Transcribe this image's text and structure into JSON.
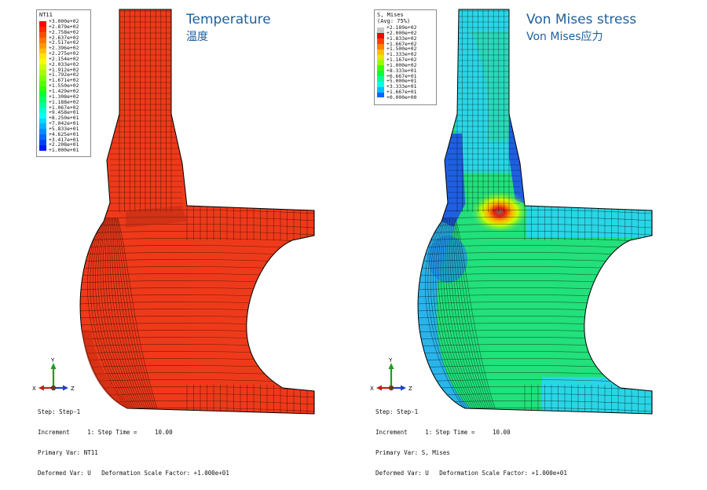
{
  "left": {
    "title_en": "Temperature",
    "title_zh": "温度",
    "legend": {
      "header_lines": [
        "NT11"
      ],
      "entries": [
        {
          "value": "+3.000e+02",
          "color": "#ff0000"
        },
        {
          "value": "+2.879e+02",
          "color": "#ff2600"
        },
        {
          "value": "+2.758e+02",
          "color": "#ff4d00"
        },
        {
          "value": "+2.637e+02",
          "color": "#ff7300"
        },
        {
          "value": "+2.517e+02",
          "color": "#ff9900"
        },
        {
          "value": "+2.396e+02",
          "color": "#ffbf00"
        },
        {
          "value": "+2.275e+02",
          "color": "#ffe600"
        },
        {
          "value": "+2.154e+02",
          "color": "#f2ff00"
        },
        {
          "value": "+2.033e+02",
          "color": "#ccff00"
        },
        {
          "value": "+1.912e+02",
          "color": "#a6ff00"
        },
        {
          "value": "+1.792e+02",
          "color": "#80ff00"
        },
        {
          "value": "+1.671e+02",
          "color": "#59ff00"
        },
        {
          "value": "+1.550e+02",
          "color": "#33ff00"
        },
        {
          "value": "+1.429e+02",
          "color": "#00ff33"
        },
        {
          "value": "+1.308e+02",
          "color": "#00ff66"
        },
        {
          "value": "+1.188e+02",
          "color": "#00ff99"
        },
        {
          "value": "+1.067e+02",
          "color": "#00ffcc"
        },
        {
          "value": "+9.458e+01",
          "color": "#00ffff"
        },
        {
          "value": "+8.250e+01",
          "color": "#00d9ff"
        },
        {
          "value": "+7.042e+01",
          "color": "#00b3ff"
        },
        {
          "value": "+5.833e+01",
          "color": "#008cff"
        },
        {
          "value": "+4.625e+01",
          "color": "#0066ff"
        },
        {
          "value": "+3.417e+01",
          "color": "#0040ff"
        },
        {
          "value": "+2.208e+01",
          "color": "#0019ff"
        },
        {
          "value": "+1.000e+01",
          "color": "#0000ff"
        }
      ]
    },
    "status_lines": [
      "Step: Step-1",
      "Increment     1: Step Time =     10.00",
      "Primary Var: NT11",
      "Deformed Var: U   Deformation Scale Factor: +1.000e+01"
    ],
    "axes": {
      "y": "Y",
      "x": "X",
      "z": "Z"
    }
  },
  "right": {
    "title_en": "Von Mises stress",
    "title_zh": "Von Mises应力",
    "legend": {
      "header_lines": [
        "S, Mises",
        "(Avg: 75%)"
      ],
      "entries": [
        {
          "value": "+2.189e+02",
          "color": "#c8c8c8"
        },
        {
          "value": "+2.000e+02",
          "color": "#ff0000"
        },
        {
          "value": "+1.833e+02",
          "color": "#ff4000"
        },
        {
          "value": "+1.667e+02",
          "color": "#ff8000"
        },
        {
          "value": "+1.500e+02",
          "color": "#ffbf00"
        },
        {
          "value": "+1.333e+02",
          "color": "#e6e600"
        },
        {
          "value": "+1.167e+02",
          "color": "#99ff00"
        },
        {
          "value": "+1.000e+02",
          "color": "#40ff00"
        },
        {
          "value": "+8.333e+01",
          "color": "#00ff40"
        },
        {
          "value": "+6.667e+01",
          "color": "#00ff99"
        },
        {
          "value": "+5.000e+01",
          "color": "#00ffe6"
        },
        {
          "value": "+3.333e+01",
          "color": "#00bfff"
        },
        {
          "value": "+1.667e+01",
          "color": "#0066ff"
        },
        {
          "value": "+0.000e+00",
          "color": "#0000ff"
        }
      ]
    },
    "status_lines": [
      "Step: Step-1",
      "Increment     1: Step Time =     10.00",
      "Primary Var: S, Mises",
      "Deformed Var: U   Deformation Scale Factor: +1.000e+01"
    ],
    "axes": {
      "y": "Y",
      "x": "X",
      "z": "Z"
    }
  },
  "colors": {
    "title": "#1f5f9b",
    "mesh_line": "#000000",
    "temperature_fill": "#ee3a1a",
    "stress_base": "#22e07a",
    "stress_cyan": "#29d6e6",
    "stress_blue": "#1f5fe0",
    "stress_hotspot": "#e81c10"
  }
}
